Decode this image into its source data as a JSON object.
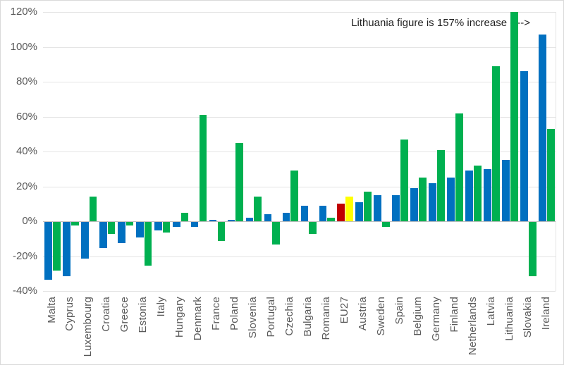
{
  "chart_data": {
    "type": "bar",
    "title": "",
    "annotation": "Lithuania figure is 157% increase ---->",
    "categories": [
      "Malta",
      "Cyprus",
      "Luxembourg",
      "Croatia",
      "Greece",
      "Estonia",
      "Italy",
      "Hungary",
      "Denmark",
      "France",
      "Poland",
      "Slovenia",
      "Portugal",
      "Czechia",
      "Bulgaria",
      "Romania",
      "EU27",
      "Austria",
      "Sweden",
      "Spain",
      "Belgium",
      "Germany",
      "Finland",
      "Netherlands",
      "Latvia",
      "Lithuania",
      "Slovakia",
      "Ireland"
    ],
    "series": [
      {
        "name": "series-blue",
        "color": "#0070C0",
        "values": [
          -33,
          -31,
          -21,
          -15,
          -12,
          -9,
          -5,
          -3,
          -3,
          1,
          1,
          2,
          4,
          5,
          9,
          9,
          10,
          11,
          15,
          15,
          19,
          22,
          25,
          29,
          30,
          35,
          86,
          107
        ]
      },
      {
        "name": "series-green",
        "color": "#00B050",
        "values": [
          -28,
          -2,
          14,
          -7,
          -2,
          -25,
          -6,
          5,
          61,
          -11,
          45,
          14,
          -13,
          29,
          -7,
          2,
          14,
          17,
          -3,
          47,
          25,
          41,
          62,
          32,
          89,
          120,
          -31,
          53
        ]
      }
    ],
    "highlight": {
      "category": "EU27",
      "series1_color": "#C00000",
      "series2_color": "#FFFF00"
    },
    "clipped_bar": {
      "category": "Lithuania",
      "series": "series-green",
      "displayed_value": 120,
      "actual_value_pct": 157
    },
    "y_axis": {
      "min": -40,
      "max": 120,
      "step": 20,
      "tick_labels": [
        "120%",
        "100%",
        "80%",
        "60%",
        "40%",
        "20%",
        "0%",
        "-20%",
        "-40%"
      ]
    },
    "x_axis": {
      "label_rotation_deg": 90
    },
    "legend": false,
    "grid": true
  },
  "colors": {
    "grid": "#E4E4E4",
    "axis_line": "#BFBFBF",
    "tick_text": "#595959",
    "annotation_text": "#1F1F1F",
    "background": "#FFFFFF",
    "frame_border": "#D9D9D9"
  }
}
